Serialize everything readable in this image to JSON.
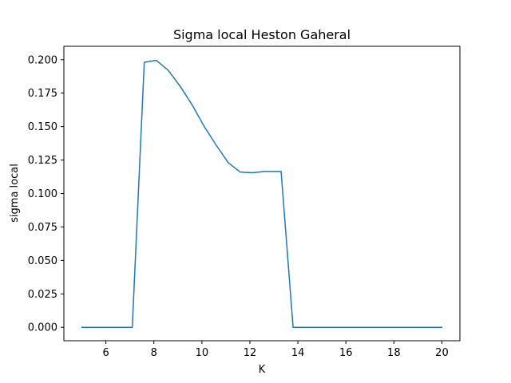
{
  "chart_data": {
    "type": "line",
    "title": "Sigma local Heston Gaheral",
    "xlabel": "K",
    "ylabel": "sigma local",
    "xlim": [
      4.25,
      20.75
    ],
    "ylim": [
      -0.01,
      0.21
    ],
    "xticks": [
      6,
      8,
      10,
      12,
      14,
      16,
      18,
      20
    ],
    "xtick_labels": [
      "6",
      "8",
      "10",
      "12",
      "14",
      "16",
      "18",
      "20"
    ],
    "yticks": [
      0.0,
      0.025,
      0.05,
      0.075,
      0.1,
      0.125,
      0.15,
      0.175,
      0.2
    ],
    "ytick_labels": [
      "0.000",
      "0.025",
      "0.050",
      "0.075",
      "0.100",
      "0.125",
      "0.150",
      "0.175",
      "0.200"
    ],
    "grid": false,
    "series": [
      {
        "color": "#1f77b4",
        "x": [
          5.0,
          5.5,
          6.0,
          6.5,
          7.0,
          7.1,
          7.6,
          8.1,
          8.6,
          9.1,
          9.6,
          10.1,
          10.6,
          11.1,
          11.6,
          12.1,
          12.6,
          13.1,
          13.3,
          13.8,
          14.5,
          15.0,
          16.0,
          17.0,
          18.0,
          19.0,
          20.0
        ],
        "y": [
          0.0,
          0.0,
          0.0,
          0.0,
          0.0,
          0.0,
          0.198,
          0.1995,
          0.192,
          0.18,
          0.166,
          0.15,
          0.136,
          0.123,
          0.116,
          0.1155,
          0.1165,
          0.1165,
          0.1165,
          0.0,
          0.0,
          0.0,
          0.0,
          0.0,
          0.0,
          0.0,
          0.0
        ]
      }
    ]
  }
}
